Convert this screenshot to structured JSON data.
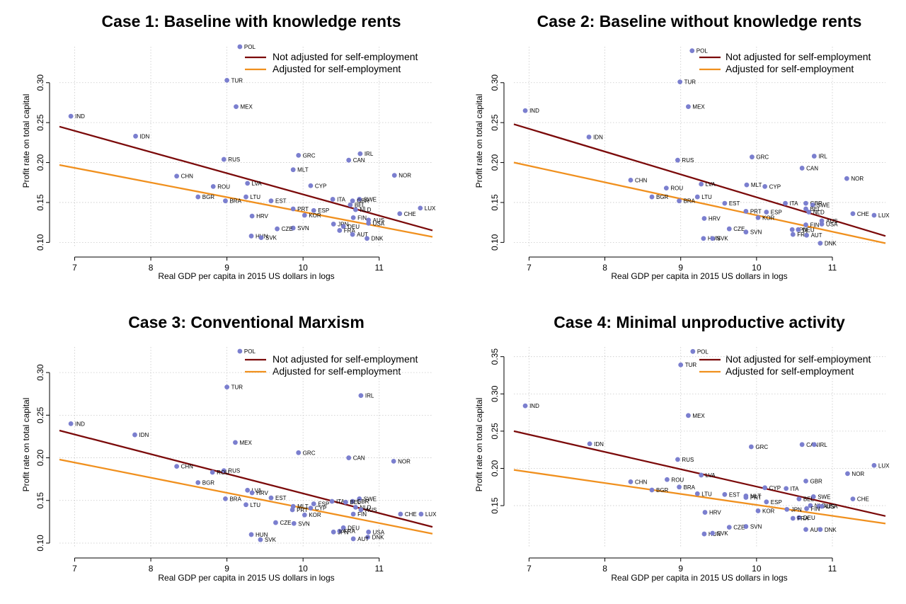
{
  "colors": {
    "not_adjusted": "#7b0a0a",
    "adjusted": "#f0901e",
    "points": "#7b7fcf",
    "grid": "#c8c8c8"
  },
  "chart_data": [
    {
      "type": "scatter",
      "title": "Case 1: Baseline with knowledge rents",
      "xlabel": "Real GDP per capita in 2015 US dollars in logs",
      "ylabel": "Profit rate on total capital",
      "xlim": [
        6.8,
        11.7
      ],
      "ylim": [
        0.095,
        0.345
      ],
      "xticks": [
        7,
        8,
        9,
        10,
        11
      ],
      "yticks": [
        0.1,
        0.15,
        0.2,
        0.25,
        0.3
      ],
      "grid": true,
      "legend": "top-right",
      "lines": [
        {
          "name": "Not adjusted for self-employment",
          "x": [
            6.8,
            11.7
          ],
          "y": [
            0.245,
            0.115
          ]
        },
        {
          "name": "Adjusted for self-employment",
          "x": [
            6.8,
            11.7
          ],
          "y": [
            0.197,
            0.107
          ]
        }
      ],
      "points": [
        {
          "label": "POL",
          "x": 9.17,
          "y": 0.345
        },
        {
          "label": "TUR",
          "x": 9.0,
          "y": 0.303
        },
        {
          "label": "MEX",
          "x": 9.12,
          "y": 0.27
        },
        {
          "label": "IND",
          "x": 6.95,
          "y": 0.258
        },
        {
          "label": "IDN",
          "x": 7.8,
          "y": 0.233
        },
        {
          "label": "IRL",
          "x": 10.75,
          "y": 0.211
        },
        {
          "label": "GRC",
          "x": 9.94,
          "y": 0.209
        },
        {
          "label": "RUS",
          "x": 8.96,
          "y": 0.204
        },
        {
          "label": "CAN",
          "x": 10.6,
          "y": 0.203
        },
        {
          "label": "MLT",
          "x": 9.87,
          "y": 0.191
        },
        {
          "label": "NOR",
          "x": 11.2,
          "y": 0.184
        },
        {
          "label": "CHN",
          "x": 8.34,
          "y": 0.183
        },
        {
          "label": "LVA",
          "x": 9.27,
          "y": 0.174
        },
        {
          "label": "CYP",
          "x": 10.1,
          "y": 0.171
        },
        {
          "label": "ROU",
          "x": 8.82,
          "y": 0.17
        },
        {
          "label": "LTU",
          "x": 9.25,
          "y": 0.157
        },
        {
          "label": "BGR",
          "x": 8.62,
          "y": 0.157
        },
        {
          "label": "ITA",
          "x": 10.39,
          "y": 0.154
        },
        {
          "label": "SWE",
          "x": 10.74,
          "y": 0.154
        },
        {
          "label": "BRA",
          "x": 8.98,
          "y": 0.152
        },
        {
          "label": "EST",
          "x": 9.58,
          "y": 0.152
        },
        {
          "label": "GBR",
          "x": 10.65,
          "y": 0.152
        },
        {
          "label": "BEL",
          "x": 10.62,
          "y": 0.147
        },
        {
          "label": "LUX",
          "x": 11.54,
          "y": 0.143
        },
        {
          "label": "PRT",
          "x": 9.87,
          "y": 0.142
        },
        {
          "label": "ESP",
          "x": 10.14,
          "y": 0.14
        },
        {
          "label": "NLD",
          "x": 10.69,
          "y": 0.141
        },
        {
          "label": "CHE",
          "x": 11.27,
          "y": 0.136
        },
        {
          "label": "KOR",
          "x": 10.02,
          "y": 0.134
        },
        {
          "label": "HRV",
          "x": 9.33,
          "y": 0.133
        },
        {
          "label": "FIN",
          "x": 10.66,
          "y": 0.131
        },
        {
          "label": "AUS",
          "x": 10.86,
          "y": 0.128
        },
        {
          "label": "JPN",
          "x": 10.4,
          "y": 0.123
        },
        {
          "label": "USA",
          "x": 10.86,
          "y": 0.124
        },
        {
          "label": "DEU",
          "x": 10.53,
          "y": 0.12
        },
        {
          "label": "SVN",
          "x": 9.87,
          "y": 0.118
        },
        {
          "label": "CZE",
          "x": 9.66,
          "y": 0.117
        },
        {
          "label": "FRA",
          "x": 10.48,
          "y": 0.115
        },
        {
          "label": "AUT",
          "x": 10.65,
          "y": 0.11
        },
        {
          "label": "HUN",
          "x": 9.32,
          "y": 0.108
        },
        {
          "label": "SVK",
          "x": 9.45,
          "y": 0.106
        },
        {
          "label": "DNK",
          "x": 10.84,
          "y": 0.105
        }
      ]
    },
    {
      "type": "scatter",
      "title": "Case 2: Baseline without knowledge rents",
      "xlabel": "Real GDP per capita in 2015 US dollars in logs",
      "ylabel": "Profit rate on total capital",
      "xlim": [
        6.8,
        11.7
      ],
      "ylim": [
        0.095,
        0.345
      ],
      "xticks": [
        7,
        8,
        9,
        10,
        11
      ],
      "yticks": [
        0.1,
        0.15,
        0.2,
        0.25,
        0.3
      ],
      "grid": true,
      "legend": "top-right",
      "lines": [
        {
          "name": "Not adjusted for self-employment",
          "x": [
            6.8,
            11.7
          ],
          "y": [
            0.248,
            0.108
          ]
        },
        {
          "name": "Adjusted for self-employment",
          "x": [
            6.8,
            11.7
          ],
          "y": [
            0.2,
            0.099
          ]
        }
      ],
      "points": [
        {
          "label": "POL",
          "x": 9.15,
          "y": 0.34
        },
        {
          "label": "TUR",
          "x": 8.99,
          "y": 0.301
        },
        {
          "label": "MEX",
          "x": 9.1,
          "y": 0.27
        },
        {
          "label": "IND",
          "x": 6.95,
          "y": 0.265
        },
        {
          "label": "IDN",
          "x": 7.79,
          "y": 0.232
        },
        {
          "label": "IRL",
          "x": 10.76,
          "y": 0.208
        },
        {
          "label": "GRC",
          "x": 9.94,
          "y": 0.207
        },
        {
          "label": "RUS",
          "x": 8.96,
          "y": 0.203
        },
        {
          "label": "CAN",
          "x": 10.6,
          "y": 0.193
        },
        {
          "label": "NOR",
          "x": 11.19,
          "y": 0.18
        },
        {
          "label": "CHN",
          "x": 8.34,
          "y": 0.178
        },
        {
          "label": "LVA",
          "x": 9.27,
          "y": 0.173
        },
        {
          "label": "MLT",
          "x": 9.87,
          "y": 0.172
        },
        {
          "label": "CYP",
          "x": 10.11,
          "y": 0.17
        },
        {
          "label": "ROU",
          "x": 8.81,
          "y": 0.168
        },
        {
          "label": "LTU",
          "x": 9.22,
          "y": 0.157
        },
        {
          "label": "BGR",
          "x": 8.62,
          "y": 0.157
        },
        {
          "label": "BRA",
          "x": 8.98,
          "y": 0.152
        },
        {
          "label": "EST",
          "x": 9.58,
          "y": 0.149
        },
        {
          "label": "ITA",
          "x": 10.38,
          "y": 0.149
        },
        {
          "label": "GBR",
          "x": 10.65,
          "y": 0.149
        },
        {
          "label": "SWE",
          "x": 10.74,
          "y": 0.147
        },
        {
          "label": "BEL",
          "x": 10.65,
          "y": 0.142
        },
        {
          "label": "PRT",
          "x": 9.86,
          "y": 0.139
        },
        {
          "label": "ESP",
          "x": 10.13,
          "y": 0.138
        },
        {
          "label": "NLD",
          "x": 10.69,
          "y": 0.138
        },
        {
          "label": "CHE",
          "x": 11.27,
          "y": 0.136
        },
        {
          "label": "LUX",
          "x": 11.55,
          "y": 0.134
        },
        {
          "label": "KOR",
          "x": 10.02,
          "y": 0.131
        },
        {
          "label": "HRV",
          "x": 9.31,
          "y": 0.13
        },
        {
          "label": "AUS",
          "x": 10.86,
          "y": 0.127
        },
        {
          "label": "FIN",
          "x": 10.65,
          "y": 0.122
        },
        {
          "label": "USA",
          "x": 10.86,
          "y": 0.123
        },
        {
          "label": "CZE",
          "x": 9.64,
          "y": 0.117
        },
        {
          "label": "JPN",
          "x": 10.47,
          "y": 0.116
        },
        {
          "label": "DEU",
          "x": 10.55,
          "y": 0.116
        },
        {
          "label": "SVN",
          "x": 9.86,
          "y": 0.113
        },
        {
          "label": "FRA",
          "x": 10.48,
          "y": 0.11
        },
        {
          "label": "AUT",
          "x": 10.66,
          "y": 0.109
        },
        {
          "label": "HUN",
          "x": 9.3,
          "y": 0.105
        },
        {
          "label": "SVK",
          "x": 9.42,
          "y": 0.105
        },
        {
          "label": "DNK",
          "x": 10.84,
          "y": 0.099
        }
      ]
    },
    {
      "type": "scatter",
      "title": "Case 3: Conventional Marxism",
      "xlabel": "Real GDP per capita in 2015 US dollars in logs",
      "ylabel": "Profit rate on total capital",
      "xlim": [
        6.8,
        11.7
      ],
      "ylim": [
        0.095,
        0.33
      ],
      "xticks": [
        7,
        8,
        9,
        10,
        11
      ],
      "yticks": [
        0.1,
        0.15,
        0.2,
        0.25,
        0.3
      ],
      "grid": true,
      "legend": "top-right",
      "lines": [
        {
          "name": "Not adjusted for self-employment",
          "x": [
            6.8,
            11.7
          ],
          "y": [
            0.232,
            0.119
          ]
        },
        {
          "name": "Adjusted for self-employment",
          "x": [
            6.8,
            11.7
          ],
          "y": [
            0.198,
            0.111
          ]
        }
      ],
      "points": [
        {
          "label": "POL",
          "x": 9.17,
          "y": 0.325
        },
        {
          "label": "TUR",
          "x": 9.0,
          "y": 0.283
        },
        {
          "label": "IRL",
          "x": 10.76,
          "y": 0.273
        },
        {
          "label": "IND",
          "x": 6.95,
          "y": 0.24
        },
        {
          "label": "IDN",
          "x": 7.79,
          "y": 0.227
        },
        {
          "label": "MEX",
          "x": 9.11,
          "y": 0.218
        },
        {
          "label": "GRC",
          "x": 9.94,
          "y": 0.206
        },
        {
          "label": "CAN",
          "x": 10.6,
          "y": 0.2
        },
        {
          "label": "NOR",
          "x": 11.19,
          "y": 0.196
        },
        {
          "label": "CHN",
          "x": 8.34,
          "y": 0.19
        },
        {
          "label": "RUS",
          "x": 8.96,
          "y": 0.185
        },
        {
          "label": "ROU",
          "x": 8.81,
          "y": 0.183
        },
        {
          "label": "BGR",
          "x": 8.62,
          "y": 0.171
        },
        {
          "label": "LVA",
          "x": 9.27,
          "y": 0.162
        },
        {
          "label": "HRV",
          "x": 9.33,
          "y": 0.159
        },
        {
          "label": "BRA",
          "x": 8.98,
          "y": 0.152
        },
        {
          "label": "EST",
          "x": 9.58,
          "y": 0.153
        },
        {
          "label": "SWE",
          "x": 10.74,
          "y": 0.152
        },
        {
          "label": "ITA",
          "x": 10.38,
          "y": 0.149
        },
        {
          "label": "GBR",
          "x": 10.65,
          "y": 0.149
        },
        {
          "label": "BEL",
          "x": 10.56,
          "y": 0.148
        },
        {
          "label": "ESP",
          "x": 10.14,
          "y": 0.146
        },
        {
          "label": "LTU",
          "x": 9.25,
          "y": 0.145
        },
        {
          "label": "MLT",
          "x": 9.87,
          "y": 0.143
        },
        {
          "label": "CYP",
          "x": 10.1,
          "y": 0.141
        },
        {
          "label": "NLD",
          "x": 10.69,
          "y": 0.142
        },
        {
          "label": "PRT",
          "x": 9.86,
          "y": 0.139
        },
        {
          "label": "AUS",
          "x": 10.76,
          "y": 0.139
        },
        {
          "label": "CHE",
          "x": 11.28,
          "y": 0.134
        },
        {
          "label": "LUX",
          "x": 11.55,
          "y": 0.134
        },
        {
          "label": "FIN",
          "x": 10.66,
          "y": 0.134
        },
        {
          "label": "KOR",
          "x": 10.02,
          "y": 0.133
        },
        {
          "label": "CZE",
          "x": 9.64,
          "y": 0.124
        },
        {
          "label": "SVN",
          "x": 9.88,
          "y": 0.123
        },
        {
          "label": "DEU",
          "x": 10.53,
          "y": 0.118
        },
        {
          "label": "FRA",
          "x": 10.48,
          "y": 0.114
        },
        {
          "label": "JPN",
          "x": 10.4,
          "y": 0.113
        },
        {
          "label": "USA",
          "x": 10.86,
          "y": 0.113
        },
        {
          "label": "HUN",
          "x": 9.32,
          "y": 0.11
        },
        {
          "label": "DNK",
          "x": 10.85,
          "y": 0.107
        },
        {
          "label": "AUT",
          "x": 10.66,
          "y": 0.105
        },
        {
          "label": "SVK",
          "x": 9.44,
          "y": 0.104
        }
      ]
    },
    {
      "type": "scatter",
      "title": "Case 4: Minimal unproductive activity",
      "xlabel": "Real GDP per capita in 2015 US dollars in logs",
      "ylabel": "Profit rate on total capital",
      "xlim": [
        6.8,
        11.7
      ],
      "ylim": [
        0.094,
        0.363
      ],
      "xticks": [
        7,
        8,
        9,
        10,
        11
      ],
      "yticks": [
        0.15,
        0.2,
        0.25,
        0.3,
        0.35
      ],
      "grid": true,
      "legend": "top-right",
      "lines": [
        {
          "name": "Not adjusted for self-employment",
          "x": [
            6.8,
            11.7
          ],
          "y": [
            0.25,
            0.136
          ]
        },
        {
          "name": "Adjusted for self-employment",
          "x": [
            6.8,
            11.7
          ],
          "y": [
            0.198,
            0.126
          ]
        }
      ],
      "points": [
        {
          "label": "POL",
          "x": 9.16,
          "y": 0.357
        },
        {
          "label": "TUR",
          "x": 9.0,
          "y": 0.339
        },
        {
          "label": "IND",
          "x": 6.95,
          "y": 0.284
        },
        {
          "label": "MEX",
          "x": 9.1,
          "y": 0.271
        },
        {
          "label": "IDN",
          "x": 7.8,
          "y": 0.233
        },
        {
          "label": "CAN",
          "x": 10.6,
          "y": 0.232
        },
        {
          "label": "IRL",
          "x": 10.76,
          "y": 0.232
        },
        {
          "label": "GRC",
          "x": 9.93,
          "y": 0.229
        },
        {
          "label": "RUS",
          "x": 8.96,
          "y": 0.212
        },
        {
          "label": "LUX",
          "x": 11.55,
          "y": 0.204
        },
        {
          "label": "NOR",
          "x": 11.2,
          "y": 0.193
        },
        {
          "label": "LVA",
          "x": 9.27,
          "y": 0.191
        },
        {
          "label": "ROU",
          "x": 8.82,
          "y": 0.185
        },
        {
          "label": "GBR",
          "x": 10.65,
          "y": 0.183
        },
        {
          "label": "CHN",
          "x": 8.34,
          "y": 0.182
        },
        {
          "label": "BRA",
          "x": 8.98,
          "y": 0.175
        },
        {
          "label": "CYP",
          "x": 10.11,
          "y": 0.174
        },
        {
          "label": "ITA",
          "x": 10.39,
          "y": 0.173
        },
        {
          "label": "BGR",
          "x": 8.62,
          "y": 0.171
        },
        {
          "label": "LTU",
          "x": 9.22,
          "y": 0.166
        },
        {
          "label": "EST",
          "x": 9.58,
          "y": 0.165
        },
        {
          "label": "MLT",
          "x": 9.86,
          "y": 0.163
        },
        {
          "label": "SWE",
          "x": 10.75,
          "y": 0.162
        },
        {
          "label": "PRT",
          "x": 9.86,
          "y": 0.161
        },
        {
          "label": "CHE",
          "x": 11.27,
          "y": 0.159
        },
        {
          "label": "BEL",
          "x": 10.56,
          "y": 0.159
        },
        {
          "label": "ESP",
          "x": 10.13,
          "y": 0.155
        },
        {
          "label": "NLD",
          "x": 10.71,
          "y": 0.15
        },
        {
          "label": "AUS",
          "x": 10.82,
          "y": 0.149
        },
        {
          "label": "USA",
          "x": 10.86,
          "y": 0.149
        },
        {
          "label": "JPN",
          "x": 10.4,
          "y": 0.145
        },
        {
          "label": "FIN",
          "x": 10.66,
          "y": 0.146
        },
        {
          "label": "KOR",
          "x": 10.02,
          "y": 0.143
        },
        {
          "label": "HRV",
          "x": 9.32,
          "y": 0.141
        },
        {
          "label": "DEU",
          "x": 10.56,
          "y": 0.134
        },
        {
          "label": "FRA",
          "x": 10.48,
          "y": 0.133
        },
        {
          "label": "SVN",
          "x": 9.86,
          "y": 0.122
        },
        {
          "label": "CZE",
          "x": 9.64,
          "y": 0.121
        },
        {
          "label": "AUT",
          "x": 10.65,
          "y": 0.118
        },
        {
          "label": "DNK",
          "x": 10.84,
          "y": 0.118
        },
        {
          "label": "HUN",
          "x": 9.31,
          "y": 0.112
        },
        {
          "label": "SVK",
          "x": 9.42,
          "y": 0.113
        }
      ]
    }
  ]
}
